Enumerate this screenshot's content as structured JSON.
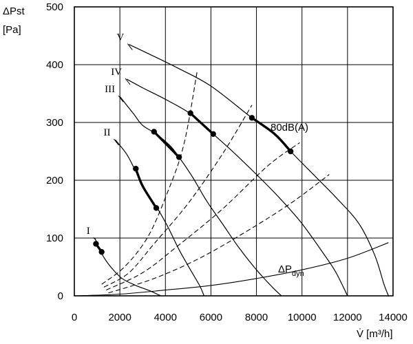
{
  "chart_data": {
    "type": "line",
    "xlabel": "V̇ [m³/h]",
    "ylabel_line1": "ΔPst",
    "ylabel_line2": "[Pa]",
    "xlim": [
      0,
      14000
    ],
    "ylim": [
      0,
      500
    ],
    "x_ticks": [
      0,
      2000,
      4000,
      6000,
      8000,
      10000,
      12000,
      14000
    ],
    "y_ticks": [
      0,
      100,
      200,
      300,
      400,
      500
    ],
    "grid": true,
    "fan_curves": [
      {
        "name": "I",
        "points": [
          [
            900,
            100
          ],
          [
            1200,
            73
          ],
          [
            1600,
            50
          ],
          [
            2100,
            30
          ],
          [
            2700,
            18
          ],
          [
            3300,
            9
          ],
          [
            3800,
            0
          ]
        ]
      },
      {
        "name": "II",
        "points": [
          [
            1800,
            270
          ],
          [
            2300,
            245
          ],
          [
            2700,
            215
          ],
          [
            3000,
            190
          ],
          [
            3400,
            165
          ],
          [
            3700,
            148
          ],
          [
            4100,
            120
          ],
          [
            4600,
            80
          ],
          [
            5100,
            45
          ],
          [
            5500,
            18
          ],
          [
            5700,
            0
          ]
        ]
      },
      {
        "name": "III",
        "points": [
          [
            2000,
            345
          ],
          [
            2600,
            315
          ],
          [
            3000,
            295
          ],
          [
            3600,
            280
          ],
          [
            4200,
            260
          ],
          [
            4600,
            240
          ],
          [
            5200,
            205
          ],
          [
            5800,
            165
          ],
          [
            6500,
            125
          ],
          [
            7200,
            85
          ],
          [
            8000,
            45
          ],
          [
            8700,
            15
          ],
          [
            9100,
            0
          ]
        ]
      },
      {
        "name": "IV",
        "points": [
          [
            2300,
            375
          ],
          [
            3000,
            360
          ],
          [
            4000,
            340
          ],
          [
            5100,
            315
          ],
          [
            6100,
            280
          ],
          [
            7000,
            248
          ],
          [
            8000,
            210
          ],
          [
            9000,
            170
          ],
          [
            10000,
            125
          ],
          [
            11000,
            70
          ],
          [
            11500,
            40
          ],
          [
            12000,
            0
          ]
        ]
      },
      {
        "name": "V",
        "points": [
          [
            2400,
            435
          ],
          [
            3200,
            420
          ],
          [
            4500,
            395
          ],
          [
            6000,
            363
          ],
          [
            7800,
            308
          ],
          [
            8800,
            280
          ],
          [
            9500,
            250
          ],
          [
            10500,
            210
          ],
          [
            11500,
            170
          ],
          [
            12500,
            125
          ],
          [
            13200,
            70
          ],
          [
            13600,
            20
          ],
          [
            13800,
            0
          ]
        ]
      }
    ],
    "operating_segments": [
      {
        "curve": "I",
        "points": [
          [
            950,
            90
          ],
          [
            1200,
            76
          ]
        ]
      },
      {
        "curve": "II",
        "points": [
          [
            2700,
            220
          ],
          [
            3000,
            190
          ],
          [
            3600,
            152
          ]
        ]
      },
      {
        "curve": "III",
        "points": [
          [
            3500,
            284
          ],
          [
            4600,
            240
          ]
        ]
      },
      {
        "curve": "IV",
        "points": [
          [
            5100,
            316
          ],
          [
            6100,
            280
          ]
        ]
      },
      {
        "curve": "V",
        "points": [
          [
            7800,
            308
          ],
          [
            8800,
            280
          ],
          [
            9500,
            250
          ]
        ]
      }
    ],
    "dashed_lines": [
      {
        "points": [
          [
            1200,
            20
          ],
          [
            2200,
            50
          ],
          [
            3200,
            100
          ],
          [
            4000,
            170
          ],
          [
            4800,
            260
          ],
          [
            5400,
            390
          ]
        ]
      },
      {
        "points": [
          [
            1300,
            15
          ],
          [
            2400,
            40
          ],
          [
            3500,
            90
          ],
          [
            5000,
            160
          ],
          [
            6500,
            245
          ],
          [
            7800,
            330
          ]
        ]
      },
      {
        "points": [
          [
            1400,
            10
          ],
          [
            3000,
            40
          ],
          [
            4500,
            85
          ],
          [
            6500,
            150
          ],
          [
            8500,
            225
          ],
          [
            9900,
            265
          ]
        ]
      },
      {
        "points": [
          [
            1500,
            5
          ],
          [
            3500,
            30
          ],
          [
            5500,
            65
          ],
          [
            7500,
            110
          ],
          [
            9500,
            160
          ],
          [
            11200,
            210
          ]
        ]
      }
    ],
    "dyn_curve": {
      "points": [
        [
          0,
          0
        ],
        [
          2000,
          3
        ],
        [
          4000,
          10
        ],
        [
          6000,
          18
        ],
        [
          8000,
          30
        ],
        [
          10000,
          45
        ],
        [
          12000,
          65
        ],
        [
          13800,
          92
        ]
      ]
    },
    "annotations": {
      "db_label": "80dB(A)",
      "dyn_label_main": "ΔP",
      "dyn_label_sub": "dyn"
    }
  }
}
